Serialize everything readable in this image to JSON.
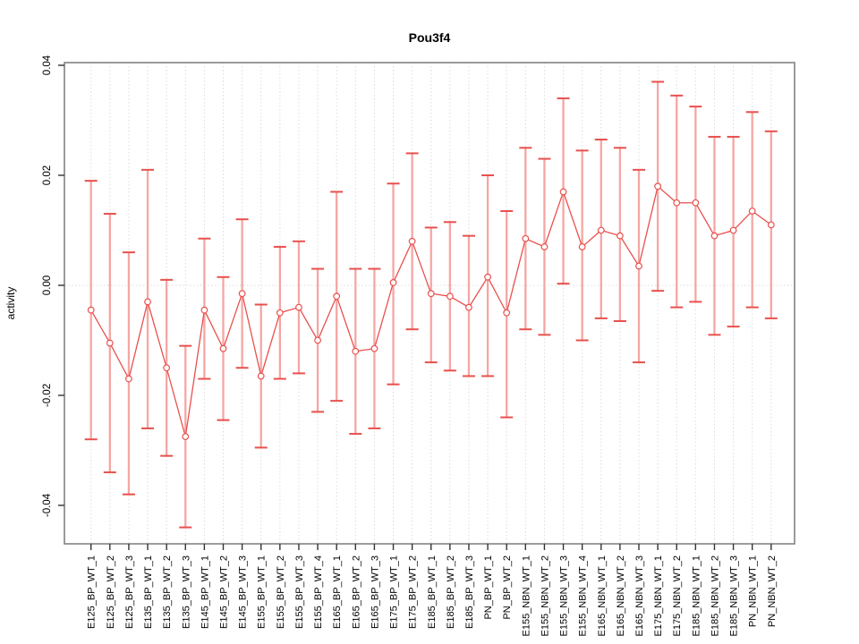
{
  "chart_data": {
    "type": "scatter",
    "subtype": "points-with-error-bars-connected-by-line",
    "title": "Pou3f4",
    "xlabel": "",
    "ylabel": "activity",
    "ylim": [
      -0.0455,
      0.0415
    ],
    "yticks": [
      0.04,
      0.02,
      0.0,
      -0.02,
      -0.04
    ],
    "ytick_labels": [
      "0.04",
      "0.02",
      "0.00",
      "-0.02",
      "-0.04"
    ],
    "grid": "light dotted vertical line at each category; light dotted horizontal line at y=0",
    "legend_position": "none",
    "categories": [
      "E125_BP_WT_1",
      "E125_BP_WT_2",
      "E125_BP_WT_3",
      "E135_BP_WT_1",
      "E135_BP_WT_2",
      "E135_BP_WT_3",
      "E145_BP_WT_1",
      "E145_BP_WT_2",
      "E145_BP_WT_3",
      "E155_BP_WT_1",
      "E155_BP_WT_2",
      "E155_BP_WT_3",
      "E155_BP_WT_4",
      "E165_BP_WT_1",
      "E165_BP_WT_2",
      "E165_BP_WT_3",
      "E175_BP_WT_1",
      "E175_BP_WT_2",
      "E185_BP_WT_1",
      "E185_BP_WT_2",
      "E185_BP_WT_3",
      "PN_BP_WT_1",
      "PN_BP_WT_2",
      "E155_NBN_WT_1",
      "E155_NBN_WT_2",
      "E155_NBN_WT_3",
      "E155_NBN_WT_4",
      "E165_NBN_WT_1",
      "E165_NBN_WT_2",
      "E165_NBN_WT_3",
      "E175_NBN_WT_1",
      "E175_NBN_WT_2",
      "E185_NBN_WT_1",
      "E185_NBN_WT_2",
      "E185_NBN_WT_3",
      "PN_NBN_WT_1",
      "PN_NBN_WT_2"
    ],
    "series": [
      {
        "name": "activity_mean",
        "values": [
          -0.0045,
          -0.0105,
          -0.017,
          -0.003,
          -0.015,
          -0.0275,
          -0.0045,
          -0.0115,
          -0.0015,
          -0.0165,
          -0.005,
          -0.004,
          -0.01,
          -0.002,
          -0.012,
          -0.0115,
          0.0005,
          0.008,
          -0.0015,
          -0.002,
          -0.004,
          0.0015,
          -0.005,
          0.0085,
          0.007,
          0.017,
          0.007,
          0.01,
          0.009,
          0.0035,
          0.018,
          0.015,
          0.015,
          0.009,
          0.01,
          0.0135,
          0.011
        ]
      },
      {
        "name": "upper_ci",
        "values": [
          0.019,
          0.013,
          0.006,
          0.021,
          0.001,
          -0.011,
          0.0085,
          0.0015,
          0.012,
          -0.0035,
          0.007,
          0.008,
          0.003,
          0.017,
          0.003,
          0.003,
          0.0185,
          0.024,
          0.0105,
          0.0115,
          0.009,
          0.02,
          0.0135,
          0.025,
          0.023,
          0.034,
          0.0245,
          0.0265,
          0.025,
          0.021,
          0.037,
          0.0345,
          0.0325,
          0.027,
          0.027,
          0.0315,
          0.028
        ]
      },
      {
        "name": "lower_ci",
        "values": [
          -0.028,
          -0.034,
          -0.038,
          -0.026,
          -0.031,
          -0.044,
          -0.017,
          -0.0245,
          -0.015,
          -0.0295,
          -0.017,
          -0.016,
          -0.023,
          -0.021,
          -0.027,
          -0.026,
          -0.018,
          -0.008,
          -0.014,
          -0.0155,
          -0.0165,
          -0.0165,
          -0.024,
          -0.008,
          -0.009,
          0.0003,
          -0.01,
          -0.006,
          -0.0065,
          -0.014,
          -0.001,
          -0.004,
          -0.003,
          -0.009,
          -0.0075,
          -0.004,
          -0.006
        ]
      }
    ],
    "colors": {
      "error_bar": "#f5a6a3",
      "accent": "#e8504d",
      "grid": "#dcdcdc",
      "box": "#828282",
      "tick": "#333333",
      "text": "#000000",
      "background": "#ffffff"
    }
  }
}
